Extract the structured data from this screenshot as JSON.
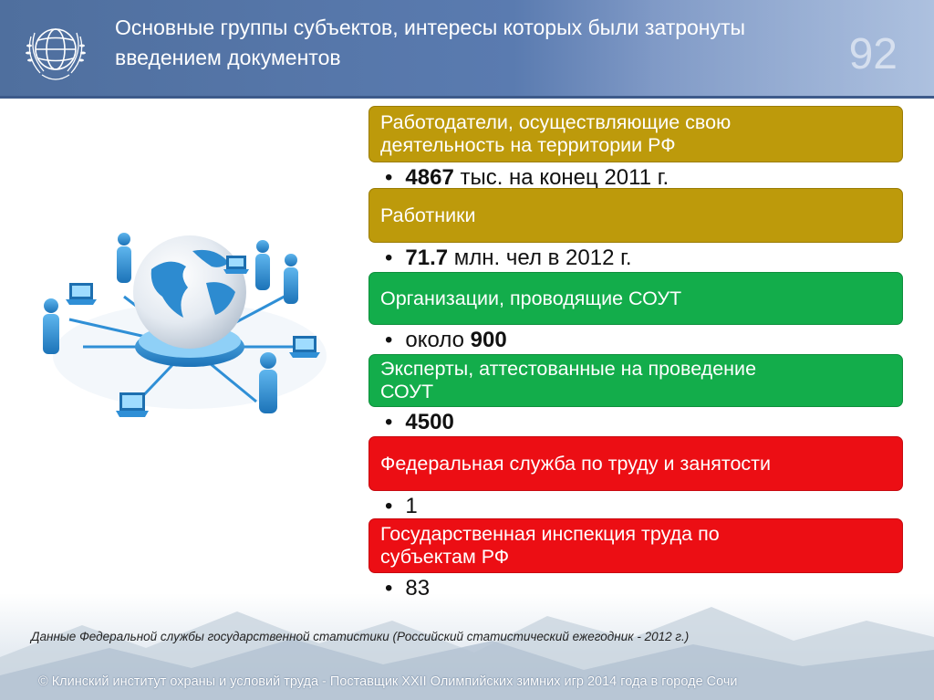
{
  "header": {
    "title_line1": "Основные группы субъектов, интересы которых были затронуты",
    "title_line2": "введением документов",
    "page_number": "92"
  },
  "groups": [
    {
      "label_line1": "Работодатели, осуществляющие свою",
      "label_line2": "деятельность на территории РФ",
      "color": "#bd9a0b",
      "value_bold": "4867",
      "value_text": " тыс. на конец 2011 г."
    },
    {
      "label_line1": "Работники",
      "label_line2": "",
      "color": "#bd9a0b",
      "value_bold": "71.7",
      "value_text": " млн. чел в 2012 г."
    },
    {
      "label_line1": "Организации, проводящие СОУТ",
      "label_line2": "",
      "color": "#13ad4b",
      "value_prefix": "около ",
      "value_bold": "900",
      "value_text": ""
    },
    {
      "label_line1": "Эксперты, аттестованные на проведение",
      "label_line2": "СОУТ",
      "color": "#13ad4b",
      "value_bold": "4500",
      "value_text": ""
    },
    {
      "label_line1": "Федеральная служба по труду и занятости",
      "label_line2": "",
      "color": "#ec0e14",
      "value_bold": "",
      "value_text": "1"
    },
    {
      "label_line1": "Государственная инспекция труда по",
      "label_line2": "субъектам РФ",
      "color": "#ec0e14",
      "value_bold": "",
      "value_text": "83"
    }
  ],
  "bullet_symbol": "•",
  "source_note": "Данные Федеральной службы государственной статистики (Российский статистический ежегодник - 2012 г.)",
  "footer": {
    "copyright": "© Клинский институт охраны и условий труда - Поставщик XXII Олимпийских зимних игр 2014 года в городе Сочи"
  },
  "icons": {
    "logo": "un-globe-wreath-logo",
    "illustration": "network-globe-people-laptops"
  }
}
